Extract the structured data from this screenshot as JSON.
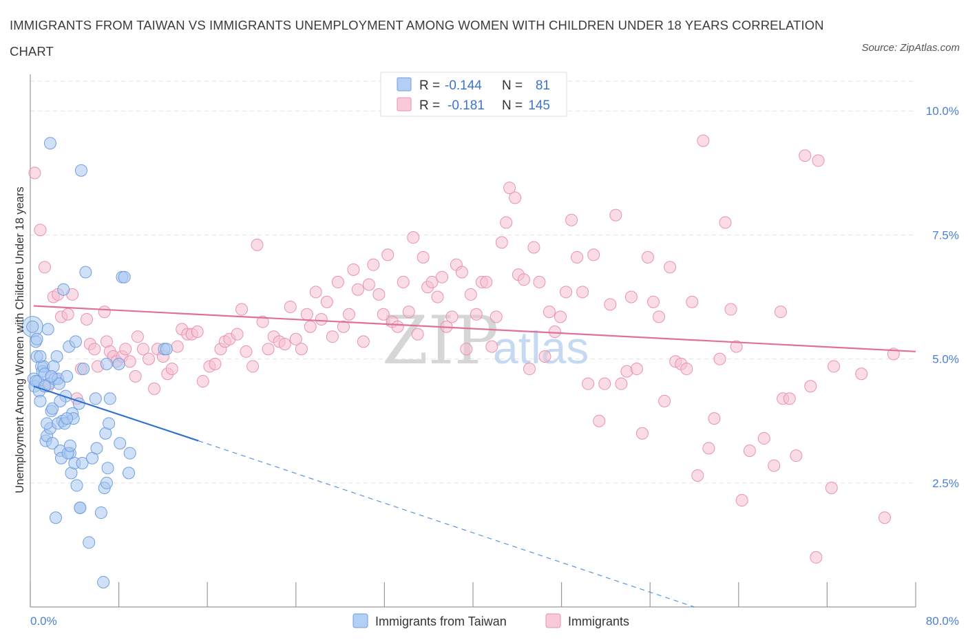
{
  "title": "IMMIGRANTS FROM TAIWAN VS IMMIGRANTS UNEMPLOYMENT AMONG WOMEN WITH CHILDREN UNDER 18 YEARS CORRELATION CHART",
  "source": "Source: ZipAtlas.com",
  "watermark": {
    "zip": "ZIP",
    "atlas": "atlas"
  },
  "colors": {
    "blue": "#5b93dd",
    "blue_fill": "#a9c8f0",
    "pink": "#e67aa0",
    "pink_fill": "#f6bfd2",
    "tick": "#4a7fd4"
  },
  "chart_data": {
    "type": "scatter",
    "xlabel": "",
    "ylabel": "Unemployment Among Women with Children Under 18 years",
    "xlim": [
      0,
      80
    ],
    "ylim": [
      0,
      10.6
    ],
    "y_ticks": [
      {
        "v": 10.0,
        "label": "10.0%"
      },
      {
        "v": 7.5,
        "label": "7.5%"
      },
      {
        "v": 5.0,
        "label": "5.0%"
      },
      {
        "v": 2.5,
        "label": "2.5%"
      }
    ],
    "x_tick_labels": {
      "min": "0.0%",
      "max": "80.0%"
    },
    "grid": true,
    "legend_stats": [
      {
        "r_label": "R =",
        "r": "-0.144",
        "n_label": "N =",
        "n": "81"
      },
      {
        "r_label": "R =",
        "r": "-0.181",
        "n_label": "N =",
        "n": "145"
      }
    ],
    "series": [
      {
        "name": "Immigrants from Taiwan",
        "trend": {
          "x0": 0.3,
          "y0": 4.45,
          "x1": 15.2,
          "y1": 3.35,
          "dash_to_x": 60,
          "dash_to_y": 0.0
        },
        "points": [
          [
            0.2,
            5.65
          ],
          [
            0.3,
            4.6
          ],
          [
            0.4,
            4.45
          ],
          [
            0.5,
            5.35
          ],
          [
            0.6,
            5.05
          ],
          [
            0.7,
            4.55
          ],
          [
            0.8,
            4.35
          ],
          [
            0.9,
            4.15
          ],
          [
            1.0,
            4.85
          ],
          [
            1.1,
            4.75
          ],
          [
            1.2,
            4.85
          ],
          [
            1.3,
            4.7
          ],
          [
            1.4,
            3.35
          ],
          [
            1.5,
            3.45
          ],
          [
            1.6,
            5.6
          ],
          [
            1.7,
            4.5
          ],
          [
            1.8,
            3.6
          ],
          [
            1.9,
            3.95
          ],
          [
            2.0,
            3.3
          ],
          [
            1.5,
            3.7
          ],
          [
            2.2,
            4.6
          ],
          [
            2.4,
            5.05
          ],
          [
            2.5,
            4.6
          ],
          [
            2.6,
            4.5
          ],
          [
            2.7,
            3.15
          ],
          [
            2.8,
            3.0
          ],
          [
            2.9,
            3.75
          ],
          [
            3.0,
            6.4
          ],
          [
            3.2,
            4.25
          ],
          [
            3.3,
            4.65
          ],
          [
            3.5,
            5.25
          ],
          [
            3.6,
            3.1
          ],
          [
            3.7,
            2.7
          ],
          [
            3.8,
            3.9
          ],
          [
            3.9,
            3.8
          ],
          [
            4.0,
            2.9
          ],
          [
            4.1,
            5.35
          ],
          [
            4.2,
            2.45
          ],
          [
            4.5,
            2.0
          ],
          [
            4.4,
            4.1
          ],
          [
            4.7,
            2.9
          ],
          [
            4.8,
            4.8
          ],
          [
            5.0,
            6.75
          ],
          [
            4.6,
            8.8
          ],
          [
            1.8,
            9.35
          ],
          [
            2.3,
            1.8
          ],
          [
            3.4,
            3.1
          ],
          [
            4.5,
            2.0
          ],
          [
            5.3,
            1.3
          ],
          [
            5.6,
            3.0
          ],
          [
            5.9,
            4.2
          ],
          [
            6.0,
            3.2
          ],
          [
            6.4,
            1.9
          ],
          [
            6.7,
            2.4
          ],
          [
            6.8,
            3.5
          ],
          [
            6.9,
            2.5
          ],
          [
            7.0,
            2.8
          ],
          [
            7.1,
            3.7
          ],
          [
            7.2,
            4.2
          ],
          [
            6.9,
            4.9
          ],
          [
            8.0,
            4.9
          ],
          [
            8.1,
            3.3
          ],
          [
            8.3,
            6.65
          ],
          [
            8.5,
            6.65
          ],
          [
            8.9,
            2.7
          ],
          [
            9.0,
            3.1
          ],
          [
            12.1,
            5.2
          ],
          [
            12.3,
            5.2
          ],
          [
            6.6,
            0.5
          ],
          [
            0.5,
            4.55
          ],
          [
            0.9,
            5.05
          ],
          [
            2.1,
            4.85
          ],
          [
            2.5,
            3.7
          ],
          [
            3.1,
            3.7
          ],
          [
            0.6,
            5.4
          ],
          [
            1.3,
            4.45
          ],
          [
            2.0,
            4.0
          ],
          [
            3.6,
            3.25
          ],
          [
            1.9,
            4.65
          ],
          [
            2.7,
            4.15
          ],
          [
            3.3,
            3.8
          ]
        ]
      },
      {
        "name": "Immigrants",
        "trend": {
          "x0": 0.3,
          "y0": 6.07,
          "x1": 80,
          "y1": 5.15
        },
        "points": [
          [
            0.4,
            8.75
          ],
          [
            0.9,
            7.6
          ],
          [
            1.3,
            6.85
          ],
          [
            1.6,
            4.45
          ],
          [
            2.1,
            6.25
          ],
          [
            2.5,
            6.3
          ],
          [
            2.8,
            5.85
          ],
          [
            3.4,
            5.9
          ],
          [
            3.8,
            6.3
          ],
          [
            4.2,
            4.2
          ],
          [
            4.6,
            4.8
          ],
          [
            5.1,
            5.8
          ],
          [
            5.4,
            5.3
          ],
          [
            5.8,
            5.2
          ],
          [
            6.1,
            4.85
          ],
          [
            6.7,
            5.95
          ],
          [
            6.9,
            5.35
          ],
          [
            7.2,
            5.15
          ],
          [
            7.5,
            5.05
          ],
          [
            7.8,
            4.95
          ],
          [
            8.3,
            5.05
          ],
          [
            8.6,
            5.2
          ],
          [
            9.0,
            4.95
          ],
          [
            9.5,
            4.65
          ],
          [
            9.7,
            5.45
          ],
          [
            10.2,
            5.2
          ],
          [
            10.7,
            5.0
          ],
          [
            11.2,
            4.4
          ],
          [
            11.5,
            5.2
          ],
          [
            12.0,
            5.05
          ],
          [
            12.4,
            4.7
          ],
          [
            12.8,
            4.8
          ],
          [
            13.3,
            5.25
          ],
          [
            13.7,
            5.6
          ],
          [
            14.2,
            5.5
          ],
          [
            14.6,
            5.5
          ],
          [
            15.1,
            5.55
          ],
          [
            15.6,
            4.55
          ],
          [
            16.2,
            4.85
          ],
          [
            16.7,
            4.9
          ],
          [
            17.2,
            5.2
          ],
          [
            17.6,
            5.35
          ],
          [
            18.0,
            5.4
          ],
          [
            18.7,
            5.5
          ],
          [
            19.1,
            6.0
          ],
          [
            19.5,
            5.15
          ],
          [
            20.1,
            4.85
          ],
          [
            20.5,
            7.3
          ],
          [
            21.0,
            5.75
          ],
          [
            21.5,
            5.2
          ],
          [
            22.0,
            5.45
          ],
          [
            22.5,
            5.35
          ],
          [
            23.0,
            5.3
          ],
          [
            23.5,
            6.05
          ],
          [
            24.0,
            5.4
          ],
          [
            24.5,
            5.2
          ],
          [
            25.0,
            5.9
          ],
          [
            25.3,
            5.65
          ],
          [
            25.8,
            6.35
          ],
          [
            26.3,
            5.8
          ],
          [
            26.8,
            6.15
          ],
          [
            27.3,
            5.45
          ],
          [
            27.8,
            6.55
          ],
          [
            28.3,
            5.65
          ],
          [
            28.8,
            5.9
          ],
          [
            29.2,
            6.8
          ],
          [
            29.6,
            6.4
          ],
          [
            30.1,
            5.35
          ],
          [
            30.6,
            6.5
          ],
          [
            31.0,
            6.9
          ],
          [
            31.5,
            6.3
          ],
          [
            31.9,
            5.9
          ],
          [
            32.3,
            7.1
          ],
          [
            32.7,
            5.75
          ],
          [
            33.2,
            5.65
          ],
          [
            33.7,
            6.55
          ],
          [
            34.2,
            5.95
          ],
          [
            34.6,
            7.45
          ],
          [
            35.0,
            5.5
          ],
          [
            35.5,
            7.05
          ],
          [
            35.9,
            6.45
          ],
          [
            36.3,
            6.55
          ],
          [
            36.8,
            6.25
          ],
          [
            37.2,
            6.65
          ],
          [
            37.6,
            5.65
          ],
          [
            38.1,
            5.85
          ],
          [
            38.5,
            6.9
          ],
          [
            39.0,
            6.75
          ],
          [
            39.4,
            5.2
          ],
          [
            39.8,
            6.3
          ],
          [
            40.3,
            5.9
          ],
          [
            40.8,
            6.55
          ],
          [
            41.2,
            6.55
          ],
          [
            41.7,
            5.25
          ],
          [
            42.1,
            5.85
          ],
          [
            42.6,
            7.35
          ],
          [
            43.0,
            7.75
          ],
          [
            43.3,
            8.45
          ],
          [
            43.8,
            8.25
          ],
          [
            44.1,
            6.7
          ],
          [
            44.6,
            6.6
          ],
          [
            45.1,
            4.8
          ],
          [
            45.5,
            7.25
          ],
          [
            46.0,
            6.55
          ],
          [
            46.5,
            5.05
          ],
          [
            46.9,
            5.95
          ],
          [
            47.4,
            5.55
          ],
          [
            47.9,
            5.85
          ],
          [
            48.4,
            6.35
          ],
          [
            48.9,
            7.8
          ],
          [
            49.4,
            7.05
          ],
          [
            49.9,
            6.35
          ],
          [
            50.4,
            4.5
          ],
          [
            50.9,
            7.1
          ],
          [
            51.4,
            3.75
          ],
          [
            51.9,
            4.5
          ],
          [
            52.4,
            6.1
          ],
          [
            52.9,
            7.9
          ],
          [
            53.4,
            4.5
          ],
          [
            53.9,
            4.75
          ],
          [
            54.3,
            6.25
          ],
          [
            54.8,
            4.8
          ],
          [
            55.3,
            3.5
          ],
          [
            55.8,
            7.05
          ],
          [
            56.3,
            6.15
          ],
          [
            56.8,
            5.85
          ],
          [
            57.3,
            4.15
          ],
          [
            57.8,
            6.85
          ],
          [
            58.3,
            4.95
          ],
          [
            58.8,
            4.9
          ],
          [
            59.3,
            4.8
          ],
          [
            59.8,
            6.15
          ],
          [
            60.3,
            2.65
          ],
          [
            60.8,
            9.4
          ],
          [
            61.3,
            3.2
          ],
          [
            61.8,
            3.8
          ],
          [
            62.3,
            5.0
          ],
          [
            62.8,
            7.75
          ],
          [
            63.3,
            6.0
          ],
          [
            63.8,
            5.25
          ],
          [
            64.3,
            2.15
          ],
          [
            65.0,
            3.15
          ],
          [
            66.3,
            3.4
          ],
          [
            67.2,
            2.85
          ],
          [
            67.8,
            5.95
          ],
          [
            68.0,
            4.2
          ],
          [
            68.6,
            4.2
          ],
          [
            69.2,
            3.05
          ],
          [
            70.0,
            9.1
          ],
          [
            70.5,
            4.45
          ],
          [
            71.0,
            1.0
          ],
          [
            71.2,
            9.0
          ],
          [
            72.4,
            2.4
          ],
          [
            72.6,
            4.85
          ],
          [
            75.1,
            4.7
          ],
          [
            77.2,
            1.8
          ],
          [
            78.0,
            5.1
          ]
        ]
      }
    ]
  }
}
